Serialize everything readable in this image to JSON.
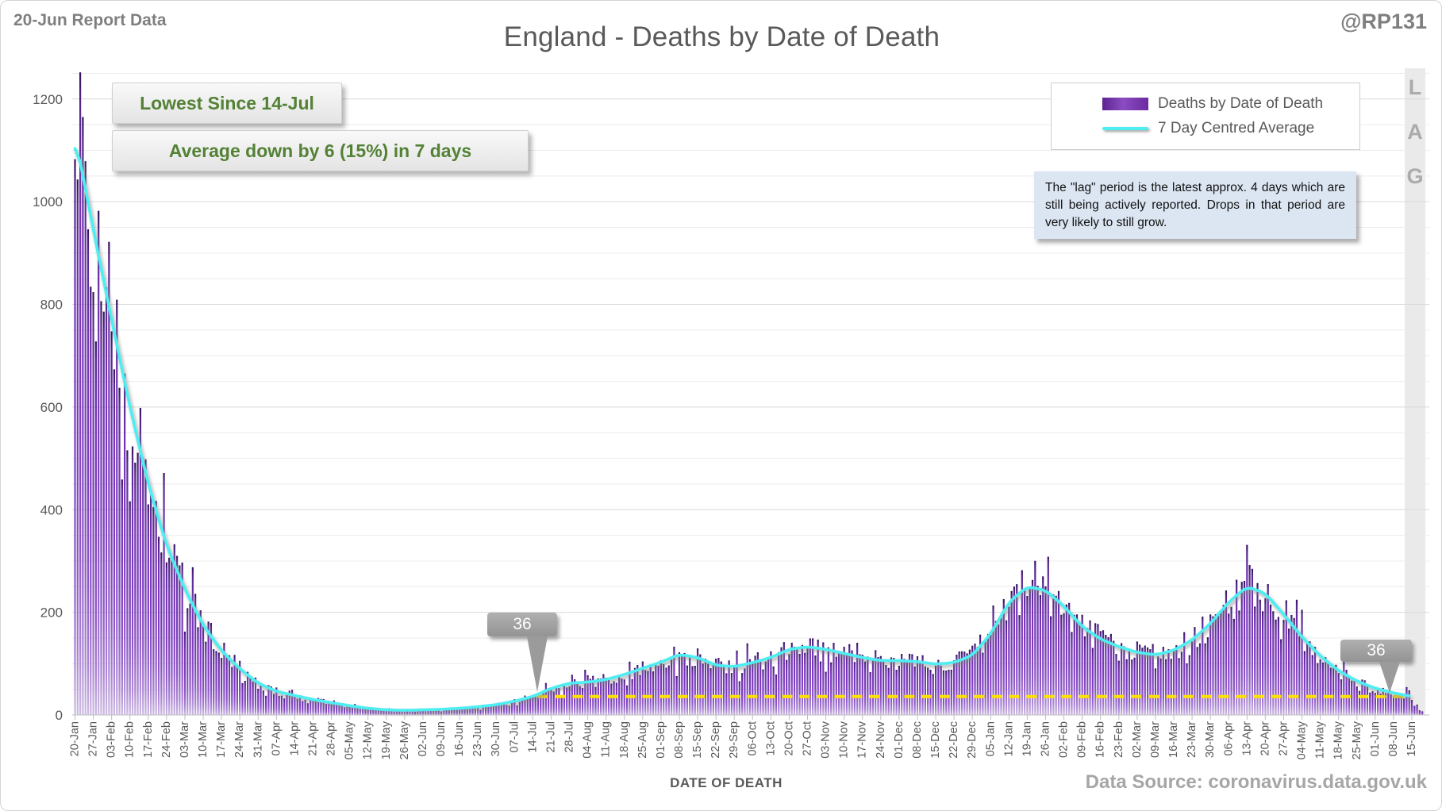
{
  "header": {
    "report_label": "20-Jun Report Data",
    "title": "England - Deaths by Date of Death",
    "handle": "@RP131"
  },
  "legend": {
    "items": [
      {
        "label": "Deaths by Date of Death",
        "swatch": "bar-swatch",
        "color": "#7B3CBD"
      },
      {
        "label": "7 Day Centred Average",
        "swatch": "line-swatch",
        "color": "#4DEEF2"
      }
    ]
  },
  "annotations": {
    "lowest": "Lowest Since 14-Jul",
    "average_change": "Average down by 6 (15%) in 7 days",
    "lag_note": "The \"lag\" period is the latest approx. 4 days which are still being actively reported. Drops in that period are very likely to still grow.",
    "lag_label": "LAG"
  },
  "footer": {
    "x_axis_title": "DATE OF DEATH",
    "data_source": "Data Source: coronavirus.data.gov.uk"
  },
  "chart_data": {
    "type": "bar",
    "title": "England - Deaths by Date of Death",
    "xlabel": "DATE OF DEATH",
    "ylabel": "",
    "ylim": [
      0,
      1260
    ],
    "y_ticks": [
      0,
      200,
      400,
      600,
      800,
      1000,
      1200
    ],
    "grid": "horizontal, minor every 50, major every 200",
    "legend_position": "top-right",
    "categories": [
      "20-Jan",
      "27-Jan",
      "03-Feb",
      "10-Feb",
      "17-Feb",
      "24-Feb",
      "03-Mar",
      "10-Mar",
      "17-Mar",
      "24-Mar",
      "31-Mar",
      "07-Apr",
      "14-Apr",
      "21-Apr",
      "28-Apr",
      "05-May",
      "12-May",
      "19-May",
      "26-May",
      "02-Jun",
      "09-Jun",
      "16-Jun",
      "23-Jun",
      "30-Jun",
      "07-Jul",
      "14-Jul",
      "21-Jul",
      "28-Jul",
      "04-Aug",
      "11-Aug",
      "18-Aug",
      "25-Aug",
      "01-Sep",
      "08-Sep",
      "15-Sep",
      "22-Sep",
      "29-Sep",
      "06-Oct",
      "13-Oct",
      "20-Oct",
      "27-Oct",
      "03-Nov",
      "10-Nov",
      "17-Nov",
      "24-Nov",
      "01-Dec",
      "08-Dec",
      "15-Dec",
      "22-Dec",
      "29-Dec",
      "05-Jan",
      "12-Jan",
      "19-Jan",
      "26-Jan",
      "02-Feb",
      "09-Feb",
      "16-Feb",
      "23-Feb",
      "02-Mar",
      "09-Mar",
      "16-Mar",
      "23-Mar",
      "30-Mar",
      "06-Apr",
      "13-Apr",
      "20-Apr",
      "27-Apr",
      "04-May",
      "11-May",
      "18-May",
      "25-May",
      "01-Jun",
      "08-Jun",
      "15-Jun"
    ],
    "series": [
      {
        "name": "Deaths by Date of Death",
        "type": "bar",
        "color": "#7B3CBD",
        "description": "Daily bars fluctuating around the 7 day centred average; weekly sampled values below",
        "weekly_values": [
          1130,
          945,
          770,
          600,
          450,
          330,
          245,
          175,
          125,
          90,
          62,
          46,
          38,
          30,
          24,
          18,
          13,
          10,
          9,
          10,
          11,
          13,
          16,
          20,
          27,
          36,
          52,
          62,
          64,
          69,
          79,
          91,
          103,
          118,
          112,
          97,
          94,
          102,
          112,
          128,
          133,
          128,
          120,
          112,
          106,
          106,
          104,
          99,
          102,
          116,
          158,
          220,
          250,
          243,
          212,
          172,
          148,
          133,
          122,
          117,
          126,
          146,
          178,
          220,
          250,
          237,
          196,
          152,
          115,
          86,
          66,
          52,
          43,
          36
        ]
      },
      {
        "name": "7 Day Centred Average",
        "type": "line",
        "color": "#4DEEF2",
        "weekly_values": [
          1130,
          945,
          770,
          600,
          450,
          330,
          245,
          175,
          125,
          90,
          62,
          46,
          38,
          30,
          24,
          18,
          13,
          10,
          9,
          10,
          11,
          13,
          16,
          20,
          27,
          36,
          52,
          62,
          64,
          69,
          79,
          91,
          103,
          118,
          112,
          97,
          94,
          102,
          112,
          128,
          133,
          128,
          120,
          112,
          106,
          106,
          104,
          99,
          102,
          116,
          158,
          220,
          250,
          243,
          212,
          172,
          148,
          133,
          122,
          117,
          126,
          146,
          178,
          220,
          250,
          237,
          196,
          152,
          115,
          86,
          66,
          52,
          43,
          36
        ]
      }
    ],
    "reference_line": {
      "value": 36,
      "color": "#FFE100",
      "style": "dashed",
      "start_category": "14-Jul",
      "end_category": "15-Jun"
    },
    "callouts": [
      {
        "text": "36",
        "category": "14-Jul",
        "value": 36
      },
      {
        "text": "36",
        "category": "15-Jun",
        "value": 36
      }
    ],
    "lag_band": {
      "label": "LAG",
      "days": 6,
      "color": "#EAEAEA"
    }
  }
}
